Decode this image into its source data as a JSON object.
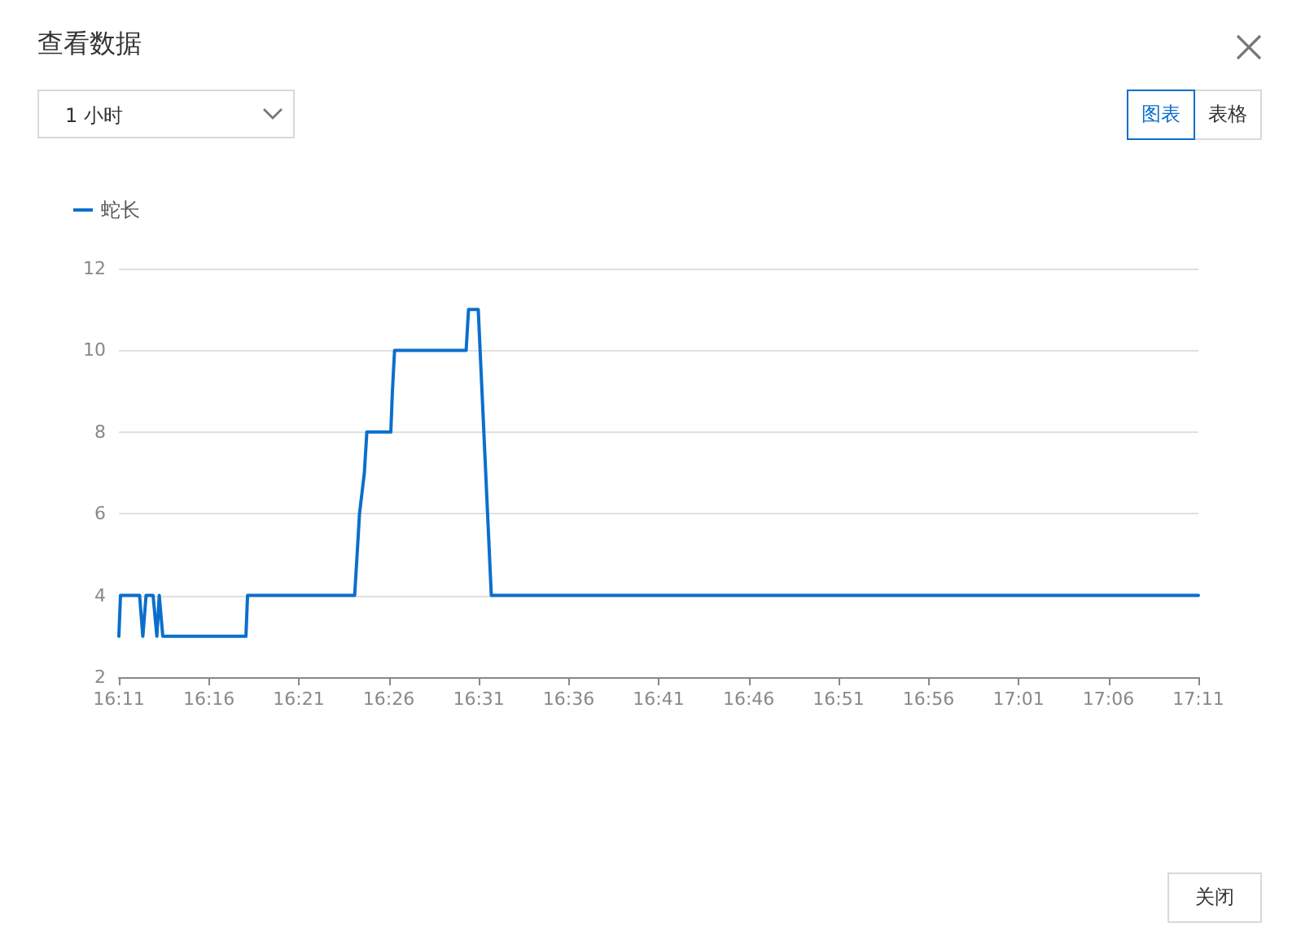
{
  "chart_data": {
    "type": "line",
    "title": "查看数据",
    "annotations": [
      "1 小时",
      "图表",
      "表格",
      "关闭"
    ],
    "xlim": [
      16.1833,
      17.1833
    ],
    "xticks": [
      {
        "value": 16.1833,
        "label": "16:11"
      },
      {
        "value": 16.2667,
        "label": "16:16"
      },
      {
        "value": 16.35,
        "label": "16:21"
      },
      {
        "value": 16.4333,
        "label": "16:26"
      },
      {
        "value": 16.5167,
        "label": "16:31"
      },
      {
        "value": 16.6,
        "label": "16:36"
      },
      {
        "value": 16.6833,
        "label": "16:41"
      },
      {
        "value": 16.7667,
        "label": "16:46"
      },
      {
        "value": 16.85,
        "label": "16:51"
      },
      {
        "value": 16.9333,
        "label": "16:56"
      },
      {
        "value": 17.0167,
        "label": "17:01"
      },
      {
        "value": 17.1,
        "label": "17:06"
      },
      {
        "value": 17.1833,
        "label": "17:11"
      }
    ],
    "ylim": [
      2,
      12
    ],
    "yticks": [
      2,
      4,
      6,
      8,
      10,
      12
    ],
    "grid": "y",
    "legend": "top left",
    "marker": "none",
    "line_style": "solid",
    "series": [
      {
        "name": "蛇长",
        "color": "#0a6fcc",
        "x": [
          16.1833,
          16.1848,
          16.2025,
          16.2055,
          16.2085,
          16.215,
          16.2185,
          16.2207,
          16.224,
          16.301,
          16.3025,
          16.4017,
          16.404,
          16.4062,
          16.4107,
          16.413,
          16.4352,
          16.4367,
          16.4387,
          16.505,
          16.5072,
          16.5162,
          16.5283,
          17.1833
        ],
        "values": [
          3,
          4,
          4,
          3,
          4,
          4,
          3,
          4,
          3,
          3,
          4,
          4,
          5,
          6,
          7,
          8,
          8,
          9,
          10,
          10,
          11,
          11,
          4,
          4
        ]
      }
    ]
  }
}
